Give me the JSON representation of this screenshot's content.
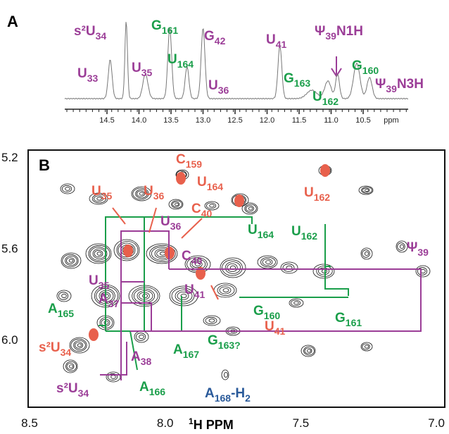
{
  "panel_a": {
    "letter": "A",
    "ticks": [
      "14.5",
      "14.0",
      "13.5",
      "13.0",
      "12.5",
      "12.0",
      "11.5",
      "11.0",
      "10.5"
    ],
    "unit": "ppm",
    "labels": [
      {
        "parts": [
          "s²U",
          "34"
        ],
        "color": "#9b3d97"
      },
      {
        "parts": [
          "U",
          "33"
        ],
        "color": "#9b3d97"
      },
      {
        "parts": [
          "U",
          "35"
        ],
        "color": "#9b3d97"
      },
      {
        "parts": [
          "G",
          "161"
        ],
        "color": "#1a9e4a"
      },
      {
        "parts": [
          "U",
          "164"
        ],
        "color": "#1a9e4a"
      },
      {
        "parts": [
          "G",
          "42"
        ],
        "color": "#9b3d97"
      },
      {
        "parts": [
          "U",
          "36"
        ],
        "color": "#9b3d97"
      },
      {
        "parts": [
          "U",
          "41"
        ],
        "color": "#9b3d97"
      },
      {
        "parts": [
          "G",
          "163"
        ],
        "color": "#1a9e4a"
      },
      {
        "parts": [
          "U",
          "162"
        ],
        "color": "#1a9e4a"
      },
      {
        "parts": [
          "Ψ",
          "39",
          "N1H"
        ],
        "color": "#9b3d97"
      },
      {
        "parts": [
          "G",
          "160"
        ],
        "color": "#1a9e4a"
      },
      {
        "parts": [
          "Ψ",
          "39",
          "N3H"
        ],
        "color": "#9b3d97"
      }
    ]
  },
  "panel_b": {
    "letter": "B",
    "y_ticks": [
      "5.2",
      "5.6",
      "6.0"
    ],
    "x_ticks": [
      "8.5",
      "8.0",
      "7.5",
      "7.0"
    ],
    "x_title": [
      "1",
      "H PPM"
    ],
    "labels": [
      {
        "parts": [
          "C",
          "159"
        ],
        "color": "#e8604c"
      },
      {
        "parts": [
          "U",
          "164"
        ],
        "color": "#e8604c"
      },
      {
        "parts": [
          "U",
          "162"
        ],
        "color": "#e8604c"
      },
      {
        "parts": [
          "U",
          "35"
        ],
        "color": "#e8604c"
      },
      {
        "parts": [
          "U",
          "36"
        ],
        "color": "#e8604c"
      },
      {
        "parts": [
          "C",
          "40"
        ],
        "color": "#e8604c"
      },
      {
        "parts": [
          "U",
          "36"
        ],
        "color": "#9b3d97"
      },
      {
        "parts": [
          "U",
          "164"
        ],
        "color": "#1a9e4a"
      },
      {
        "parts": [
          "U",
          "162"
        ],
        "color": "#1a9e4a"
      },
      {
        "parts": [
          "Ψ",
          "39"
        ],
        "color": "#9b3d97"
      },
      {
        "parts": [
          "C",
          "40"
        ],
        "color": "#9b3d97"
      },
      {
        "parts": [
          "U",
          "35"
        ],
        "color": "#9b3d97"
      },
      {
        "parts": [
          "A",
          "37"
        ],
        "color": "#9b3d97"
      },
      {
        "parts": [
          "U",
          "41"
        ],
        "color": "#9b3d97"
      },
      {
        "parts": [
          "A",
          "165"
        ],
        "color": "#1a9e4a"
      },
      {
        "parts": [
          "G",
          "160"
        ],
        "color": "#1a9e4a"
      },
      {
        "parts": [
          "G",
          "161"
        ],
        "color": "#1a9e4a"
      },
      {
        "parts": [
          "U",
          "41"
        ],
        "color": "#e8604c"
      },
      {
        "parts": [
          "s²U",
          "34"
        ],
        "color": "#e8604c"
      },
      {
        "parts": [
          "A",
          "167"
        ],
        "color": "#1a9e4a"
      },
      {
        "parts": [
          "G",
          "163?"
        ],
        "color": "#1a9e4a"
      },
      {
        "parts": [
          "A",
          "38"
        ],
        "color": "#9b3d97"
      },
      {
        "parts": [
          "A",
          "166"
        ],
        "color": "#1a9e4a"
      },
      {
        "parts": [
          "s²U",
          "34"
        ],
        "color": "#9b3d97"
      },
      {
        "parts": [
          "A",
          "168",
          "-H",
          "2"
        ],
        "color": "#2a5a9a"
      }
    ]
  }
}
